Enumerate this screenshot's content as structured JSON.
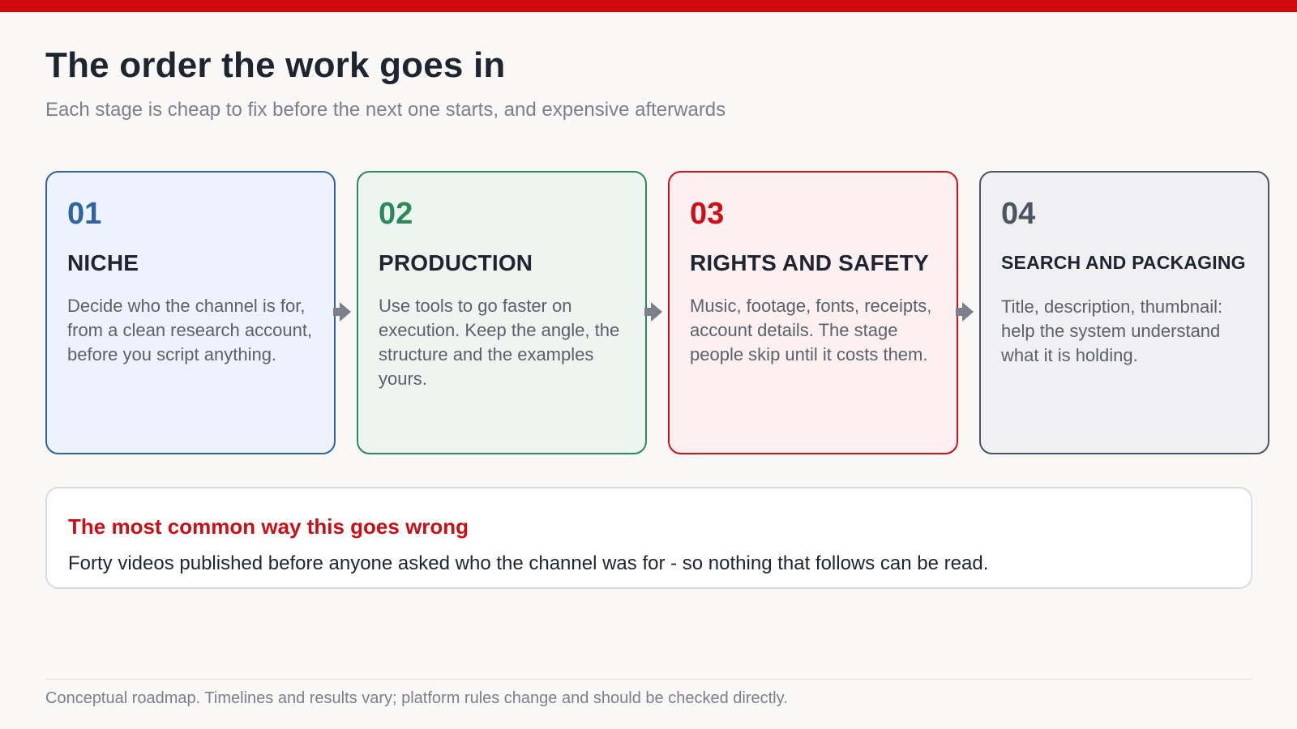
{
  "title": "The order the work goes in",
  "subtitle": "Each stage is cheap to fix before the next one starts, and expensive afterwards",
  "stages": [
    {
      "number": "01",
      "title": "NICHE",
      "description": "Decide who the channel is for, from a clean research account, before you script anything.",
      "border_color": "#2f64a0",
      "background": "#edf3fc",
      "number_color": "#2f64a0"
    },
    {
      "number": "02",
      "title": "PRODUCTION",
      "description": "Use tools to go faster on execution. Keep the angle, the structure and the examples yours.",
      "border_color": "#2b8a57",
      "background": "#ecf5ef",
      "number_color": "#2b8a57"
    },
    {
      "number": "03",
      "title": "RIGHTS AND SAFETY",
      "description": "Music, footage, fonts, receipts, account details. The stage people skip until it costs them.",
      "border_color": "#cc1017",
      "background": "#fdf0f0",
      "number_color": "#cc1017"
    },
    {
      "number": "04",
      "title": "SEARCH AND PACKAGING",
      "description": "Title, description, thumbnail: help the system understand what it is holding.",
      "border_color": "#4d5562",
      "background": "#f0f0f2",
      "number_color": "#4d5562"
    }
  ],
  "connector_icon": "arrow-right-icon",
  "warning": {
    "title": "The most common way this goes wrong",
    "text": "Forty videos published before anyone asked who the channel was for - so nothing that follows can be read."
  },
  "footer": "Conceptual roadmap. Timelines and results vary; platform rules change and should be checked directly.",
  "colors": {
    "accent": "#d10a10",
    "heading": "#1e2430",
    "muted": "#7b808a"
  }
}
